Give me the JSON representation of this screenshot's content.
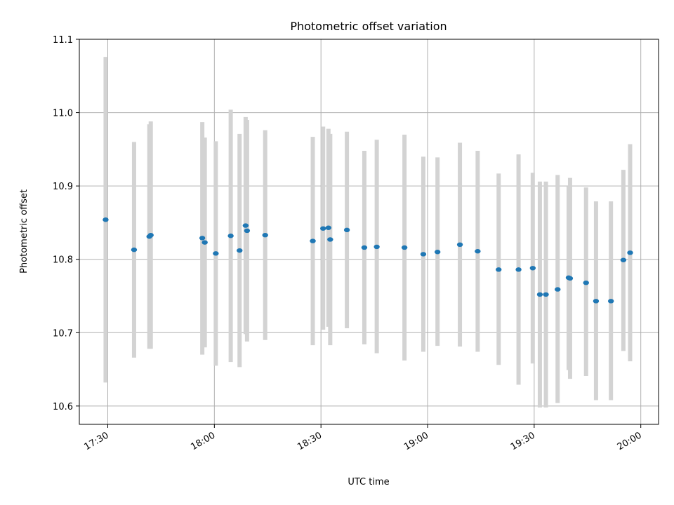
{
  "chart_data": {
    "type": "scatter",
    "title": "Photometric offset variation",
    "xlabel": "UTC time",
    "ylabel": "Photometric offset",
    "ylim": [
      10.575,
      11.1
    ],
    "xlim": [
      "17:22",
      "20:05"
    ],
    "y_ticks": [
      "10.6",
      "10.7",
      "10.8",
      "10.9",
      "11.0",
      "11.1"
    ],
    "x_ticks": [
      "17:30",
      "18:00",
      "18:30",
      "19:00",
      "19:30",
      "20:00"
    ],
    "grid": true,
    "colors": {
      "point": "#1f77b4",
      "errorbar": "#d3d3d3",
      "grid": "#b0b0b0"
    },
    "points": [
      {
        "x": "17:29.4",
        "y": 10.854,
        "lo": 10.632,
        "hi": 11.076
      },
      {
        "x": "17:37.4",
        "y": 10.813,
        "lo": 10.666,
        "hi": 10.96
      },
      {
        "x": "17:41.7",
        "y": 10.831,
        "lo": 10.678,
        "hi": 10.984
      },
      {
        "x": "17:42.1",
        "y": 10.833,
        "lo": 10.678,
        "hi": 10.988
      },
      {
        "x": "17:56.6",
        "y": 10.829,
        "lo": 10.67,
        "hi": 10.987
      },
      {
        "x": "17:57.3",
        "y": 10.823,
        "lo": 10.68,
        "hi": 10.966
      },
      {
        "x": "18:00.4",
        "y": 10.808,
        "lo": 10.655,
        "hi": 10.961
      },
      {
        "x": "18:04.6",
        "y": 10.832,
        "lo": 10.66,
        "hi": 11.004
      },
      {
        "x": "18:07.1",
        "y": 10.812,
        "lo": 10.653,
        "hi": 10.971
      },
      {
        "x": "18:08.8",
        "y": 10.846,
        "lo": 10.698,
        "hi": 10.994
      },
      {
        "x": "18:09.2",
        "y": 10.839,
        "lo": 10.688,
        "hi": 10.99
      },
      {
        "x": "18:14.3",
        "y": 10.833,
        "lo": 10.69,
        "hi": 10.976
      },
      {
        "x": "18:27.7",
        "y": 10.825,
        "lo": 10.683,
        "hi": 10.967
      },
      {
        "x": "18:30.6",
        "y": 10.842,
        "lo": 10.704,
        "hi": 10.981
      },
      {
        "x": "18:32.1",
        "y": 10.843,
        "lo": 10.708,
        "hi": 10.978
      },
      {
        "x": "18:32.6",
        "y": 10.827,
        "lo": 10.683,
        "hi": 10.971
      },
      {
        "x": "18:37.3",
        "y": 10.84,
        "lo": 10.706,
        "hi": 10.974
      },
      {
        "x": "18:42.2",
        "y": 10.816,
        "lo": 10.684,
        "hi": 10.948
      },
      {
        "x": "18:45.7",
        "y": 10.817,
        "lo": 10.672,
        "hi": 10.963
      },
      {
        "x": "18:53.5",
        "y": 10.816,
        "lo": 10.662,
        "hi": 10.97
      },
      {
        "x": "18:58.8",
        "y": 10.807,
        "lo": 10.674,
        "hi": 10.94
      },
      {
        "x": "19:02.8",
        "y": 10.81,
        "lo": 10.682,
        "hi": 10.939
      },
      {
        "x": "19:09.1",
        "y": 10.82,
        "lo": 10.681,
        "hi": 10.959
      },
      {
        "x": "19:14.1",
        "y": 10.811,
        "lo": 10.674,
        "hi": 10.948
      },
      {
        "x": "19:20.0",
        "y": 10.786,
        "lo": 10.656,
        "hi": 10.917
      },
      {
        "x": "19:25.6",
        "y": 10.786,
        "lo": 10.629,
        "hi": 10.943
      },
      {
        "x": "19:29.6",
        "y": 10.788,
        "lo": 10.658,
        "hi": 10.918
      },
      {
        "x": "19:31.6",
        "y": 10.752,
        "lo": 10.598,
        "hi": 10.906
      },
      {
        "x": "19:33.3",
        "y": 10.752,
        "lo": 10.598,
        "hi": 10.906
      },
      {
        "x": "19:36.6",
        "y": 10.759,
        "lo": 10.604,
        "hi": 10.915
      },
      {
        "x": "19:39.7",
        "y": 10.775,
        "lo": 10.649,
        "hi": 10.9
      },
      {
        "x": "19:40.1",
        "y": 10.774,
        "lo": 10.637,
        "hi": 10.911
      },
      {
        "x": "19:44.6",
        "y": 10.768,
        "lo": 10.641,
        "hi": 10.898
      },
      {
        "x": "19:47.4",
        "y": 10.743,
        "lo": 10.608,
        "hi": 10.879
      },
      {
        "x": "19:51.6",
        "y": 10.743,
        "lo": 10.608,
        "hi": 10.879
      },
      {
        "x": "19:55.1",
        "y": 10.799,
        "lo": 10.675,
        "hi": 10.922
      },
      {
        "x": "19:57.0",
        "y": 10.809,
        "lo": 10.661,
        "hi": 10.957
      }
    ]
  }
}
